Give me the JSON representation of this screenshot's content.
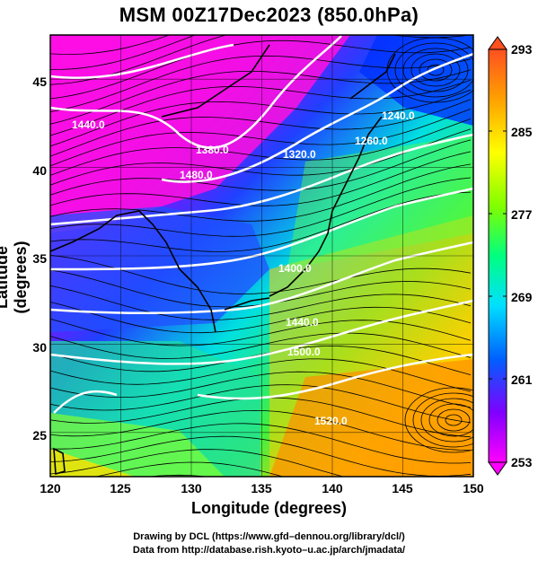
{
  "title": "MSM 00Z17Dec2023 (850.0hPa)",
  "xlabel": "Longitude (degrees)",
  "ylabel": "Latitude  (degrees)",
  "x_ticks": [
    "120",
    "125",
    "130",
    "135",
    "140",
    "145",
    "150"
  ],
  "y_ticks": [
    "25",
    "30",
    "35",
    "40",
    "45"
  ],
  "colorbar_ticks": [
    "293",
    "285",
    "277",
    "269",
    "261",
    "253"
  ],
  "contour_labels": [
    "1440.0",
    "1380.0",
    "1320.0",
    "1260.0",
    "1240.0",
    "1480.0",
    "1400.0",
    "1440.0",
    "1500.0",
    "1520.0"
  ],
  "credits": {
    "line1": "Drawing by DCL (https://www.gfd–dennou.org/library/dcl/)",
    "line2": "Data from http://database.rish.kyoto–u.ac.jp/arch/jmadata/"
  },
  "map": {
    "lon_range": [
      120,
      150
    ],
    "lat_range": [
      22.5,
      47.5
    ],
    "colorbar_range": [
      253,
      293
    ],
    "colors": {
      "magenta": "#ff00ff",
      "purple": "#8000ff",
      "blue": "#0040ff",
      "cyan": "#00e0ff",
      "green": "#40ff40",
      "yellow": "#ffff00",
      "orange": "#ffa000",
      "contour": "#ffffff",
      "streamline": "#000000"
    }
  }
}
